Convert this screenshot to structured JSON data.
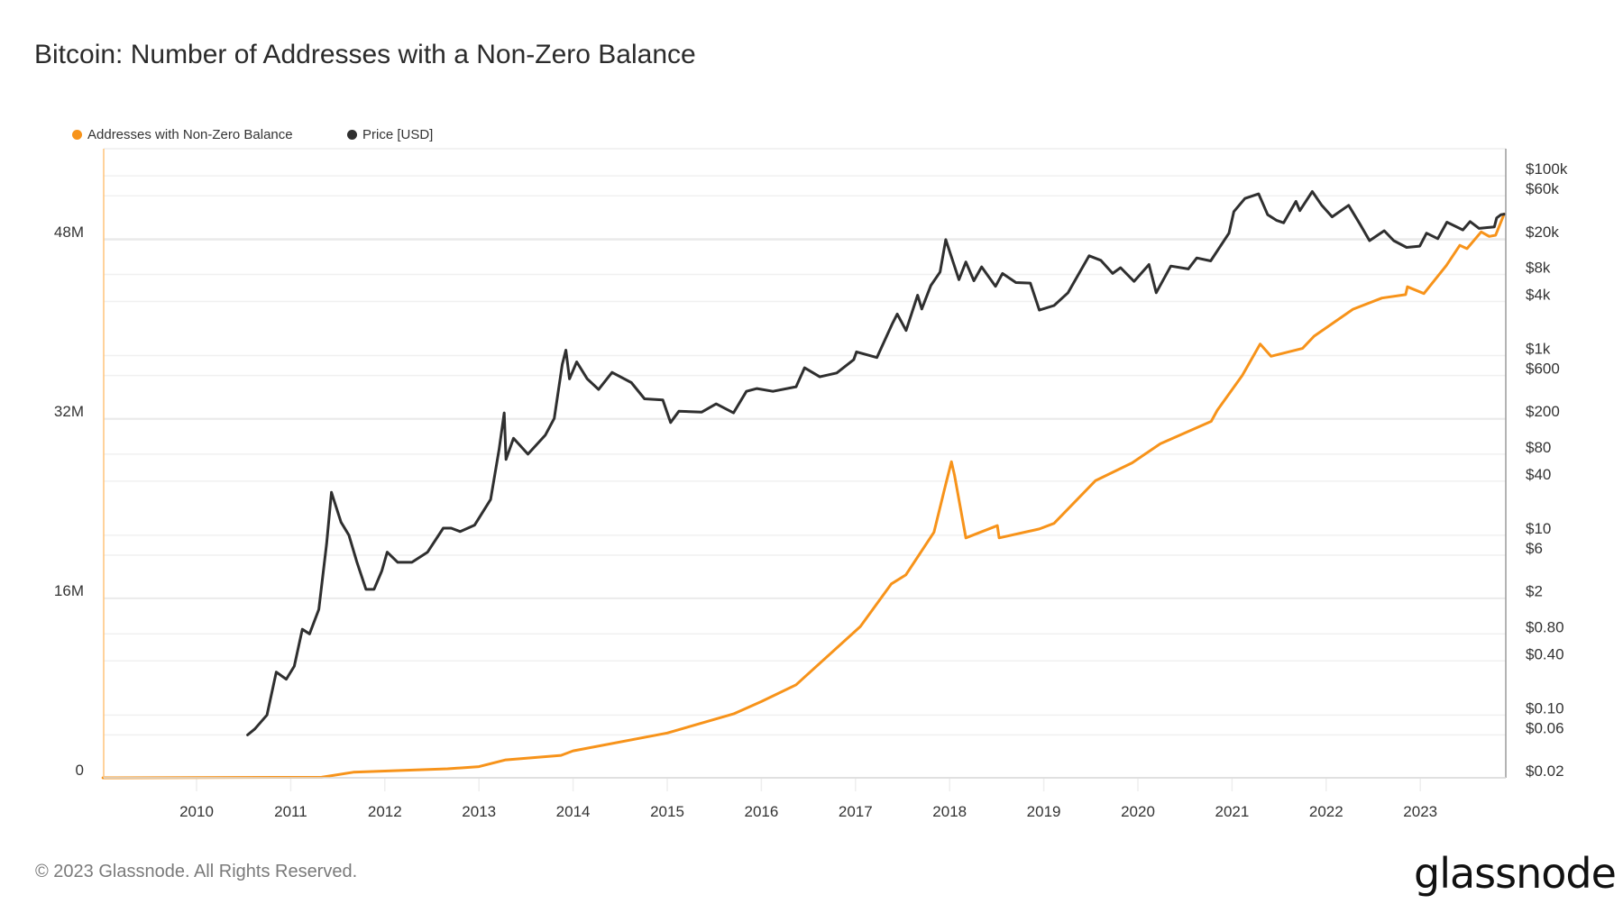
{
  "title": "Bitcoin: Number of Addresses with a Non-Zero Balance",
  "copyright": "© 2023 Glassnode. All Rights Reserved.",
  "logo": "glassnode",
  "chart_data": {
    "type": "line",
    "title": "Bitcoin: Number of Addresses with a Non-Zero Balance",
    "grid": true,
    "legend_position": "top-left",
    "x_axis": {
      "type": "date",
      "range": [
        "2009-01-03",
        "2023-11-22"
      ],
      "tick_labels": [
        "2010",
        "2011",
        "2012",
        "2013",
        "2014",
        "2015",
        "2016",
        "2017",
        "2018",
        "2019",
        "2020",
        "2021",
        "2022",
        "2023"
      ]
    },
    "y_left": {
      "range_millions": [
        0,
        56
      ],
      "ticks": [
        0,
        16,
        32,
        48
      ],
      "tick_labels": [
        "0",
        "16M",
        "32M",
        "48M"
      ]
    },
    "y_right": {
      "scale": "log",
      "range_usd": [
        0.02,
        200000
      ],
      "ticks": [
        100000,
        60000,
        20000,
        8000,
        4000,
        1000,
        600,
        200,
        80,
        40,
        10,
        6,
        2,
        0.8,
        0.4,
        0.1,
        0.06,
        0.02
      ],
      "tick_labels": [
        "$100k",
        "$60k",
        "$20k",
        "$8k",
        "$4k",
        "$1k",
        "$600",
        "$200",
        "$80",
        "$40",
        "$10",
        "$6",
        "$2",
        "$0.80",
        "$0.40",
        "$0.10",
        "$0.06",
        "$0.02"
      ]
    },
    "series": [
      {
        "name": "Addresses with Non-Zero Balance",
        "axis": "left",
        "unit": "millions",
        "color": "#f7931a",
        "points": [
          [
            "2009-01-03",
            0
          ],
          [
            "2011-05-01",
            0.05
          ],
          [
            "2011-09-01",
            0.5
          ],
          [
            "2012-09-01",
            0.8
          ],
          [
            "2013-01-01",
            1.0
          ],
          [
            "2013-04-15",
            1.6
          ],
          [
            "2013-11-15",
            2.0
          ],
          [
            "2014-01-01",
            2.4
          ],
          [
            "2015-01-01",
            4.0
          ],
          [
            "2015-09-15",
            5.7
          ],
          [
            "2016-01-01",
            6.8
          ],
          [
            "2016-05-15",
            8.3
          ],
          [
            "2017-01-20",
            13.5
          ],
          [
            "2017-05-20",
            17.3
          ],
          [
            "2017-07-15",
            18.1
          ],
          [
            "2017-11-01",
            21.9
          ],
          [
            "2017-12-15",
            26
          ],
          [
            "2018-01-08",
            28.2
          ],
          [
            "2018-01-20",
            27
          ],
          [
            "2018-03-05",
            21.4
          ],
          [
            "2018-07-05",
            22.5
          ],
          [
            "2018-07-12",
            21.4
          ],
          [
            "2018-12-15",
            22.2
          ],
          [
            "2019-02-10",
            22.7
          ],
          [
            "2019-07-20",
            26.5
          ],
          [
            "2019-12-10",
            28.1
          ],
          [
            "2020-03-28",
            29.8
          ],
          [
            "2020-10-12",
            31.8
          ],
          [
            "2020-11-05",
            32.8
          ],
          [
            "2021-02-10",
            35.9
          ],
          [
            "2021-04-20",
            38.7
          ],
          [
            "2021-06-01",
            37.6
          ],
          [
            "2021-10-01",
            38.3
          ],
          [
            "2021-11-15",
            39.4
          ],
          [
            "2022-04-15",
            41.8
          ],
          [
            "2022-08-05",
            42.8
          ],
          [
            "2022-11-05",
            43.1
          ],
          [
            "2022-11-12",
            43.8
          ],
          [
            "2023-01-15",
            43.2
          ],
          [
            "2023-04-12",
            45.7
          ],
          [
            "2023-06-03",
            47.5
          ],
          [
            "2023-07-01",
            47.2
          ],
          [
            "2023-08-25",
            48.7
          ],
          [
            "2023-09-25",
            48.3
          ],
          [
            "2023-10-20",
            48.4
          ],
          [
            "2023-11-22",
            50.3
          ]
        ]
      },
      {
        "name": "Price [USD]",
        "axis": "right",
        "unit": "USD",
        "color": "#2f2f2f",
        "points": [
          [
            "2010-07-18",
            0.06
          ],
          [
            "2010-08-15",
            0.07
          ],
          [
            "2010-10-01",
            0.1
          ],
          [
            "2010-11-06",
            0.3
          ],
          [
            "2010-12-15",
            0.25
          ],
          [
            "2011-01-15",
            0.35
          ],
          [
            "2011-02-15",
            0.9
          ],
          [
            "2011-03-15",
            0.8
          ],
          [
            "2011-04-20",
            1.5
          ],
          [
            "2011-05-20",
            8
          ],
          [
            "2011-06-08",
            30
          ],
          [
            "2011-07-15",
            14
          ],
          [
            "2011-08-15",
            10
          ],
          [
            "2011-09-15",
            5
          ],
          [
            "2011-10-20",
            2.5
          ],
          [
            "2011-11-20",
            2.5
          ],
          [
            "2011-12-20",
            4
          ],
          [
            "2012-01-10",
            6.5
          ],
          [
            "2012-02-20",
            5
          ],
          [
            "2012-04-15",
            5
          ],
          [
            "2012-06-15",
            6.5
          ],
          [
            "2012-08-15",
            12
          ],
          [
            "2012-09-15",
            12
          ],
          [
            "2012-10-20",
            11
          ],
          [
            "2012-12-15",
            13
          ],
          [
            "2013-02-15",
            25
          ],
          [
            "2013-03-20",
            90
          ],
          [
            "2013-04-09",
            230
          ],
          [
            "2013-04-16",
            70
          ],
          [
            "2013-05-15",
            120
          ],
          [
            "2013-07-10",
            80
          ],
          [
            "2013-09-15",
            130
          ],
          [
            "2013-10-20",
            200
          ],
          [
            "2013-11-20",
            800
          ],
          [
            "2013-12-04",
            1150
          ],
          [
            "2013-12-18",
            550
          ],
          [
            "2014-01-15",
            850
          ],
          [
            "2014-02-25",
            550
          ],
          [
            "2014-04-10",
            420
          ],
          [
            "2014-06-01",
            650
          ],
          [
            "2014-08-15",
            500
          ],
          [
            "2014-10-05",
            330
          ],
          [
            "2014-12-15",
            320
          ],
          [
            "2015-01-14",
            180
          ],
          [
            "2015-02-15",
            240
          ],
          [
            "2015-05-15",
            235
          ],
          [
            "2015-07-10",
            290
          ],
          [
            "2015-09-15",
            230
          ],
          [
            "2015-11-04",
            400
          ],
          [
            "2015-12-15",
            430
          ],
          [
            "2016-02-15",
            400
          ],
          [
            "2016-05-15",
            450
          ],
          [
            "2016-06-17",
            730
          ],
          [
            "2016-08-15",
            580
          ],
          [
            "2016-10-20",
            640
          ],
          [
            "2016-12-25",
            900
          ],
          [
            "2017-01-05",
            1100
          ],
          [
            "2017-03-25",
            950
          ],
          [
            "2017-05-25",
            2300
          ],
          [
            "2017-06-12",
            2900
          ],
          [
            "2017-07-16",
            1900
          ],
          [
            "2017-08-30",
            4700
          ],
          [
            "2017-09-15",
            3300
          ],
          [
            "2017-10-20",
            6000
          ],
          [
            "2017-11-25",
            8500
          ],
          [
            "2017-12-17",
            19500
          ],
          [
            "2018-02-06",
            7000
          ],
          [
            "2018-03-05",
            11000
          ],
          [
            "2018-04-05",
            6800
          ],
          [
            "2018-05-05",
            9700
          ],
          [
            "2018-06-28",
            5900
          ],
          [
            "2018-07-25",
            8200
          ],
          [
            "2018-09-15",
            6500
          ],
          [
            "2018-11-10",
            6400
          ],
          [
            "2018-12-15",
            3200
          ],
          [
            "2019-02-10",
            3600
          ],
          [
            "2019-04-05",
            5000
          ],
          [
            "2019-06-26",
            12900
          ],
          [
            "2019-08-10",
            11500
          ],
          [
            "2019-09-25",
            8200
          ],
          [
            "2019-10-26",
            9500
          ],
          [
            "2019-12-17",
            6700
          ],
          [
            "2020-02-13",
            10300
          ],
          [
            "2020-03-12",
            5000
          ],
          [
            "2020-05-08",
            9900
          ],
          [
            "2020-07-15",
            9200
          ],
          [
            "2020-08-17",
            12200
          ],
          [
            "2020-10-10",
            11300
          ],
          [
            "2020-12-20",
            23000
          ],
          [
            "2021-01-08",
            40000
          ],
          [
            "2021-02-20",
            56000
          ],
          [
            "2021-04-14",
            63000
          ],
          [
            "2021-05-19",
            37000
          ],
          [
            "2021-06-22",
            32000
          ],
          [
            "2021-07-20",
            30000
          ],
          [
            "2021-09-06",
            52000
          ],
          [
            "2021-09-21",
            41000
          ],
          [
            "2021-11-08",
            67000
          ],
          [
            "2021-12-15",
            47000
          ],
          [
            "2022-01-24",
            35000
          ],
          [
            "2022-03-29",
            47000
          ],
          [
            "2022-05-12",
            29000
          ],
          [
            "2022-06-18",
            19000
          ],
          [
            "2022-08-14",
            24500
          ],
          [
            "2022-09-20",
            19000
          ],
          [
            "2022-11-09",
            16000
          ],
          [
            "2022-12-30",
            16500
          ],
          [
            "2023-01-25",
            23000
          ],
          [
            "2023-03-10",
            20000
          ],
          [
            "2023-04-14",
            30500
          ],
          [
            "2023-06-15",
            25000
          ],
          [
            "2023-07-13",
            31000
          ],
          [
            "2023-08-17",
            26000
          ],
          [
            "2023-10-15",
            27000
          ],
          [
            "2023-10-24",
            34000
          ],
          [
            "2023-11-10",
            37000
          ],
          [
            "2023-11-22",
            37500
          ]
        ]
      }
    ]
  }
}
